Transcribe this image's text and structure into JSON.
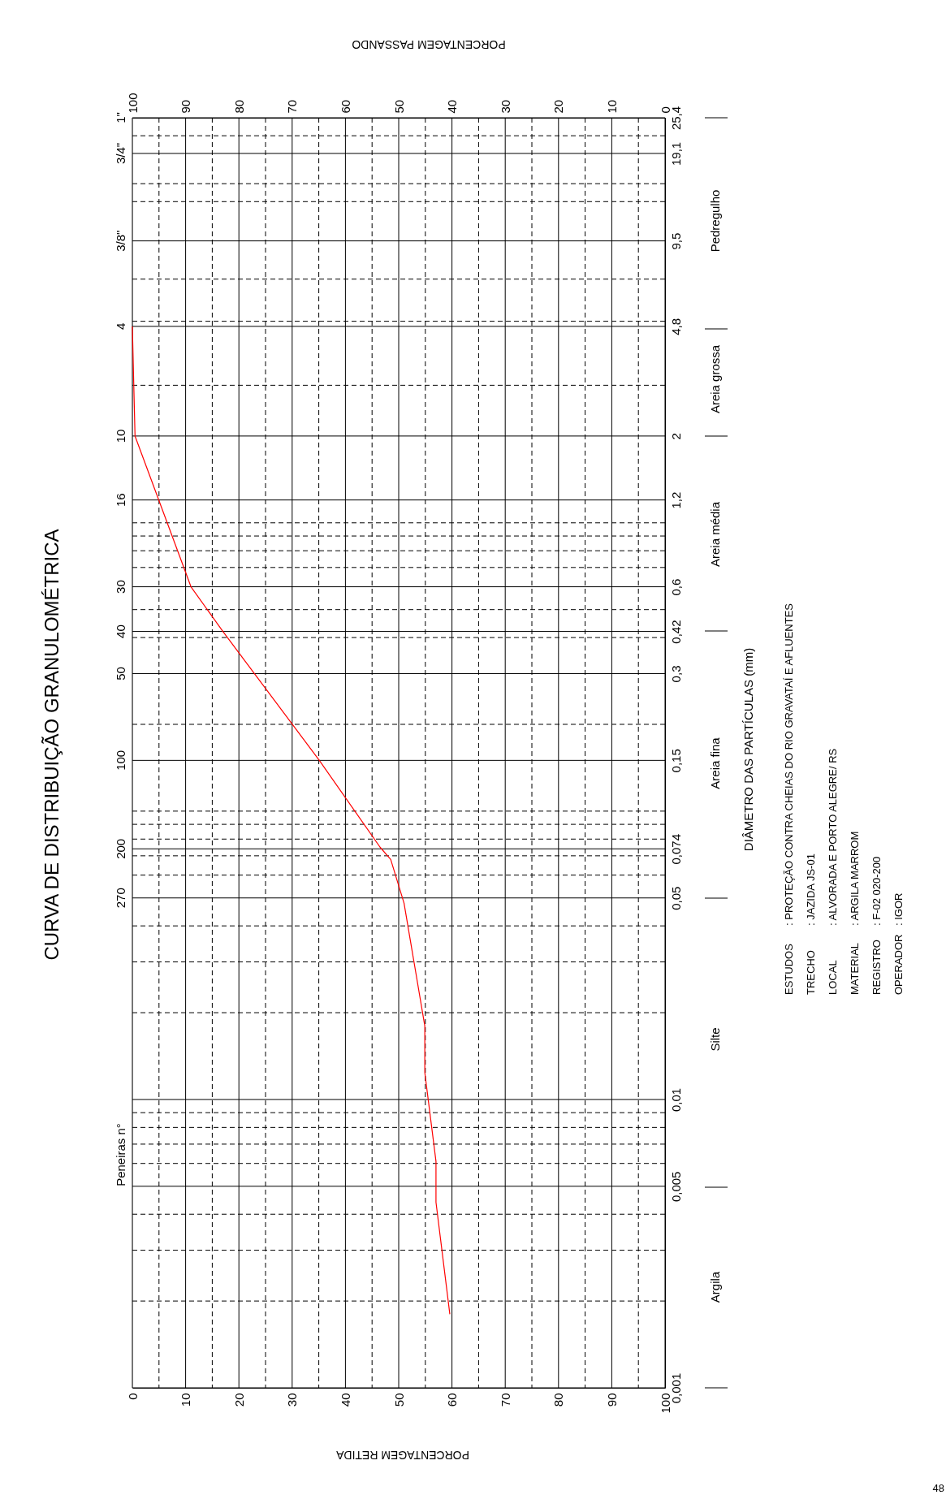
{
  "chart_data": {
    "type": "line",
    "title": "CURVA DE DISTRIBUIÇÃO GRANULOMÉTRICA",
    "ylabel": "DIÂMETRO DAS PARTÍCULAS (mm)",
    "xlabel": "PORCENTAGEM RETIDA",
    "x2label": "PORCENTAGEM PASSANDO",
    "log": "y",
    "grid": true,
    "marker": "none",
    "line_style": "solid",
    "series": [
      {
        "color": "#ff0000",
        "axis": "x2",
        "x": [
          100,
          99.5,
          89,
          83,
          64.9,
          53.5,
          51.5,
          49,
          45.1,
          45.1,
          43,
          43,
          40.4
        ],
        "values": [
          4.8,
          2,
          0.6,
          0.42,
          0.15,
          0.075,
          0.068,
          0.048,
          0.018,
          0.0124,
          0.0061,
          0.0044,
          0.0018
        ]
      }
    ],
    "ylim": [
      0.001,
      25.4
    ],
    "yticks": [
      {
        "value": 0.001,
        "label": "0,001"
      },
      {
        "value": 0.002,
        "label": null
      },
      {
        "value": 0.003,
        "label": null
      },
      {
        "value": 0.004,
        "label": null
      },
      {
        "value": 0.005,
        "label": "0,005"
      },
      {
        "value": 0.006,
        "label": null
      },
      {
        "value": 0.007,
        "label": null
      },
      {
        "value": 0.008,
        "label": null
      },
      {
        "value": 0.009,
        "label": null
      },
      {
        "value": 0.01,
        "label": "0,01"
      },
      {
        "value": 0.02,
        "label": null
      },
      {
        "value": 0.03,
        "label": null
      },
      {
        "value": 0.04,
        "label": null
      },
      {
        "value": 0.05,
        "label": "0,05"
      },
      {
        "value": 0.06,
        "label": null
      },
      {
        "value": 0.07,
        "label": null
      },
      {
        "value": 0.074,
        "label": "0,074"
      },
      {
        "value": 0.08,
        "label": null
      },
      {
        "value": 0.09,
        "label": null
      },
      {
        "value": 0.1,
        "label": null
      },
      {
        "value": 0.15,
        "label": "0,15"
      },
      {
        "value": 0.2,
        "label": null
      },
      {
        "value": 0.3,
        "label": "0,3"
      },
      {
        "value": 0.4,
        "label": null
      },
      {
        "value": 0.42,
        "label": "0,42"
      },
      {
        "value": 0.5,
        "label": null
      },
      {
        "value": 0.6,
        "label": "0,6"
      },
      {
        "value": 0.7,
        "label": null
      },
      {
        "value": 0.8,
        "label": null
      },
      {
        "value": 0.9,
        "label": null
      },
      {
        "value": 1,
        "label": null
      },
      {
        "value": 1.2,
        "label": "1,2"
      },
      {
        "value": 2,
        "label": "2"
      },
      {
        "value": 3,
        "label": null
      },
      {
        "value": 4.8,
        "label": "4,8"
      },
      {
        "value": 5,
        "label": null
      },
      {
        "value": 7,
        "label": null
      },
      {
        "value": 9.5,
        "label": "9,5"
      },
      {
        "value": 13,
        "label": null
      },
      {
        "value": 15,
        "label": null
      },
      {
        "value": 19.1,
        "label": "19,1"
      },
      {
        "value": 22,
        "label": null
      },
      {
        "value": 25.4,
        "label": "25,4"
      }
    ],
    "xlim": [
      0,
      100
    ],
    "xticks": [
      0,
      {
        "value": 5,
        "label": null
      },
      10,
      {
        "value": 15,
        "label": null
      },
      20,
      {
        "value": 25,
        "label": null
      },
      30,
      {
        "value": 35,
        "label": null
      },
      40,
      {
        "value": 45,
        "label": null
      },
      50,
      {
        "value": 55,
        "label": null
      },
      60,
      {
        "value": 65,
        "label": null
      },
      70,
      {
        "value": 75,
        "label": null
      },
      80,
      {
        "value": 85,
        "label": null
      },
      90,
      {
        "value": 95,
        "label": null
      },
      100
    ],
    "x2lim": [
      100,
      0
    ],
    "x2ticks": [
      100,
      90,
      80,
      70,
      60,
      50,
      40,
      30,
      20,
      10,
      0
    ],
    "annotations": [
      "1\"",
      "3/4\"",
      "3/8\"",
      "4",
      "10",
      "16",
      "30",
      "40",
      "50",
      "100",
      "200",
      "270",
      "Peneiras n°",
      "Pedregulho",
      "Areia grossa",
      "Areia média",
      "Areia fina",
      "Silte",
      "Argila",
      "ESTUDOS",
      ": PROTEÇÃO CONTRA CHEIAS DO RIO GRAVATAÍ E AFLUENTES",
      "TRECHO",
      ": JAZIDA JS-01",
      "LOCAL",
      ": ALVORADA E PORTO ALEGRE/ RS",
      "MATERIAL",
      ": ARGILA MARROM",
      "REGISTRO",
      ": F-02 020-200",
      "OPERADOR",
      ": IGOR",
      "48"
    ]
  }
}
